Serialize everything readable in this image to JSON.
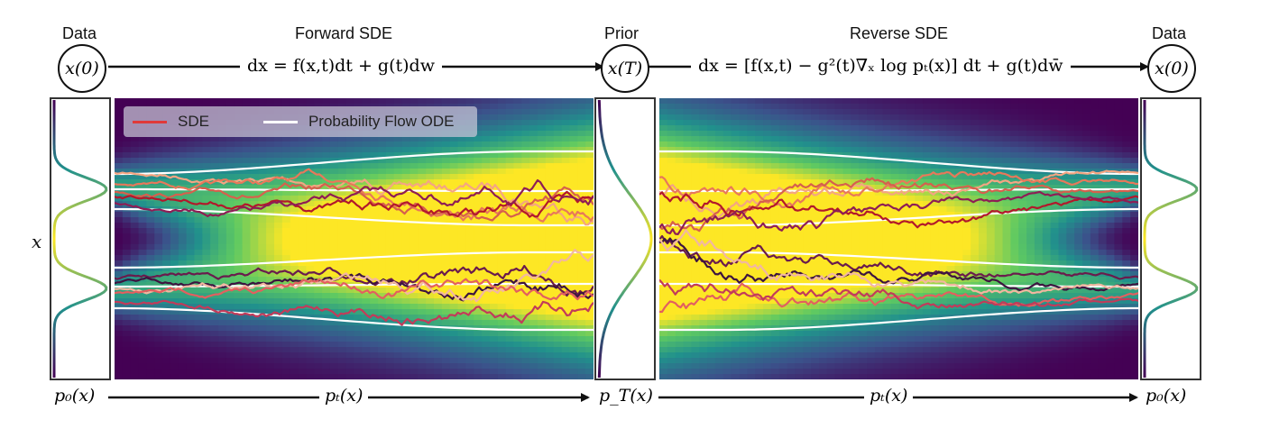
{
  "headers": {
    "data_left": "Data",
    "forward": "Forward SDE",
    "prior": "Prior",
    "reverse": "Reverse SDE",
    "data_right": "Data"
  },
  "nodes": {
    "x0_left": "x(0)",
    "xT": "x(T)",
    "x0_right": "x(0)"
  },
  "equations": {
    "forward": "dx = f(x,t)dt + g(t)dw",
    "reverse": "dx = [f(x,t) − g²(t)∇ₓ log pₜ(x)] dt + g(t)dw̄"
  },
  "axis_label": "x",
  "bottom": {
    "p0_left": "p₀(x)",
    "pt_left": "pₜ(x)",
    "pT": "p_T(x)",
    "pt_right": "pₜ(x)",
    "p0_right": "p₀(x)"
  },
  "legend": {
    "sde": "SDE",
    "ode": "Probability Flow ODE",
    "sde_color": "#e03a3a",
    "ode_color": "#ffffff"
  },
  "colormap": [
    "#440154",
    "#3b528b",
    "#21918c",
    "#5ec962",
    "#fde725"
  ]
}
